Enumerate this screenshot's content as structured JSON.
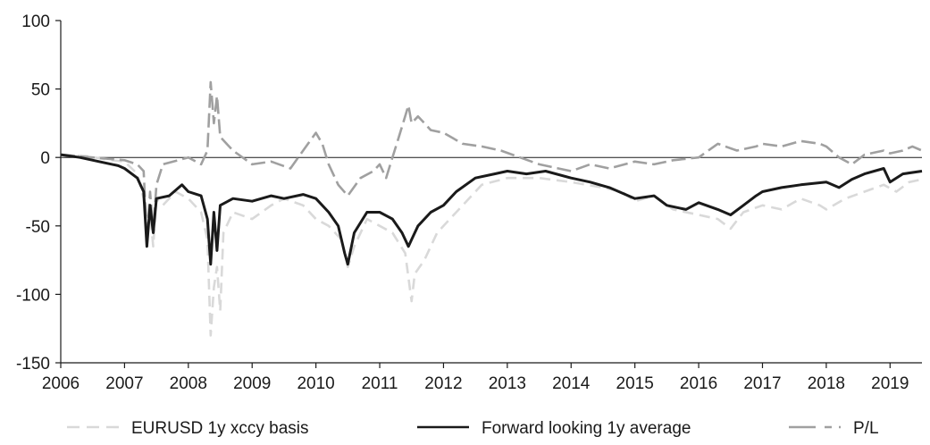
{
  "chart_data": {
    "type": "line",
    "title": "",
    "xlabel": "",
    "ylabel": "",
    "xlim": [
      2006.0,
      2019.5
    ],
    "ylim": [
      -150,
      100
    ],
    "y_ticks": [
      100,
      50,
      0,
      -50,
      -100,
      -150
    ],
    "x_ticks": [
      "2006",
      "2007",
      "2008",
      "2009",
      "2010",
      "2011",
      "2012",
      "2013",
      "2014",
      "2015",
      "2016",
      "2017",
      "2018",
      "2019"
    ],
    "grid": false,
    "legend_position": "bottom",
    "series": [
      {
        "name": "EURUSD 1y xccy basis",
        "color": "#d9d9d9",
        "style": "dashed",
        "points": [
          [
            2006.0,
            2
          ],
          [
            2006.4,
            1
          ],
          [
            2006.8,
            -2
          ],
          [
            2007.0,
            -3
          ],
          [
            2007.2,
            -12
          ],
          [
            2007.3,
            -30
          ],
          [
            2007.35,
            -55
          ],
          [
            2007.4,
            -40
          ],
          [
            2007.45,
            -65
          ],
          [
            2007.5,
            -30
          ],
          [
            2007.6,
            -35
          ],
          [
            2007.8,
            -25
          ],
          [
            2008.0,
            -30
          ],
          [
            2008.2,
            -40
          ],
          [
            2008.3,
            -60
          ],
          [
            2008.35,
            -130
          ],
          [
            2008.4,
            -95
          ],
          [
            2008.45,
            -80
          ],
          [
            2008.5,
            -112
          ],
          [
            2008.55,
            -55
          ],
          [
            2008.7,
            -40
          ],
          [
            2009.0,
            -45
          ],
          [
            2009.3,
            -35
          ],
          [
            2009.5,
            -30
          ],
          [
            2009.8,
            -35
          ],
          [
            2010.0,
            -45
          ],
          [
            2010.2,
            -50
          ],
          [
            2010.4,
            -60
          ],
          [
            2010.5,
            -80
          ],
          [
            2010.6,
            -65
          ],
          [
            2010.8,
            -45
          ],
          [
            2011.0,
            -50
          ],
          [
            2011.2,
            -55
          ],
          [
            2011.4,
            -70
          ],
          [
            2011.5,
            -105
          ],
          [
            2011.55,
            -85
          ],
          [
            2011.7,
            -75
          ],
          [
            2011.9,
            -55
          ],
          [
            2012.1,
            -45
          ],
          [
            2012.3,
            -35
          ],
          [
            2012.6,
            -20
          ],
          [
            2013.0,
            -15
          ],
          [
            2013.5,
            -15
          ],
          [
            2014.0,
            -18
          ],
          [
            2014.5,
            -22
          ],
          [
            2014.8,
            -25
          ],
          [
            2015.0,
            -32
          ],
          [
            2015.3,
            -28
          ],
          [
            2015.6,
            -38
          ],
          [
            2016.0,
            -42
          ],
          [
            2016.3,
            -45
          ],
          [
            2016.5,
            -52
          ],
          [
            2016.7,
            -40
          ],
          [
            2017.0,
            -35
          ],
          [
            2017.3,
            -38
          ],
          [
            2017.6,
            -30
          ],
          [
            2017.9,
            -35
          ],
          [
            2018.0,
            -38
          ],
          [
            2018.3,
            -30
          ],
          [
            2018.6,
            -25
          ],
          [
            2018.9,
            -20
          ],
          [
            2019.1,
            -25
          ],
          [
            2019.3,
            -18
          ],
          [
            2019.5,
            -16
          ]
        ]
      },
      {
        "name": "Forward looking 1y average",
        "color": "#1a1a1a",
        "style": "solid",
        "points": [
          [
            2006.0,
            2
          ],
          [
            2006.3,
            0
          ],
          [
            2006.6,
            -3
          ],
          [
            2006.9,
            -6
          ],
          [
            2007.0,
            -8
          ],
          [
            2007.2,
            -15
          ],
          [
            2007.3,
            -25
          ],
          [
            2007.35,
            -65
          ],
          [
            2007.4,
            -35
          ],
          [
            2007.45,
            -55
          ],
          [
            2007.5,
            -30
          ],
          [
            2007.7,
            -28
          ],
          [
            2007.9,
            -20
          ],
          [
            2008.0,
            -25
          ],
          [
            2008.2,
            -28
          ],
          [
            2008.3,
            -45
          ],
          [
            2008.35,
            -78
          ],
          [
            2008.4,
            -40
          ],
          [
            2008.45,
            -68
          ],
          [
            2008.5,
            -35
          ],
          [
            2008.7,
            -30
          ],
          [
            2009.0,
            -32
          ],
          [
            2009.3,
            -28
          ],
          [
            2009.5,
            -30
          ],
          [
            2009.8,
            -27
          ],
          [
            2010.0,
            -30
          ],
          [
            2010.2,
            -40
          ],
          [
            2010.35,
            -50
          ],
          [
            2010.45,
            -70
          ],
          [
            2010.5,
            -78
          ],
          [
            2010.6,
            -55
          ],
          [
            2010.8,
            -40
          ],
          [
            2011.0,
            -40
          ],
          [
            2011.2,
            -45
          ],
          [
            2011.35,
            -55
          ],
          [
            2011.45,
            -65
          ],
          [
            2011.5,
            -60
          ],
          [
            2011.6,
            -50
          ],
          [
            2011.8,
            -40
          ],
          [
            2012.0,
            -35
          ],
          [
            2012.2,
            -25
          ],
          [
            2012.5,
            -15
          ],
          [
            2012.8,
            -12
          ],
          [
            2013.0,
            -10
          ],
          [
            2013.3,
            -12
          ],
          [
            2013.6,
            -10
          ],
          [
            2014.0,
            -15
          ],
          [
            2014.3,
            -18
          ],
          [
            2014.6,
            -22
          ],
          [
            2015.0,
            -30
          ],
          [
            2015.3,
            -28
          ],
          [
            2015.5,
            -35
          ],
          [
            2015.8,
            -38
          ],
          [
            2016.0,
            -33
          ],
          [
            2016.3,
            -38
          ],
          [
            2016.5,
            -42
          ],
          [
            2016.7,
            -35
          ],
          [
            2016.9,
            -28
          ],
          [
            2017.0,
            -25
          ],
          [
            2017.3,
            -22
          ],
          [
            2017.6,
            -20
          ],
          [
            2018.0,
            -18
          ],
          [
            2018.2,
            -22
          ],
          [
            2018.4,
            -16
          ],
          [
            2018.6,
            -12
          ],
          [
            2018.9,
            -8
          ],
          [
            2019.0,
            -18
          ],
          [
            2019.2,
            -12
          ],
          [
            2019.5,
            -10
          ]
        ]
      },
      {
        "name": "P/L",
        "color": "#a0a0a0",
        "style": "long-short-dash",
        "points": [
          [
            2006.0,
            2
          ],
          [
            2006.5,
            0
          ],
          [
            2007.0,
            -2
          ],
          [
            2007.2,
            -5
          ],
          [
            2007.3,
            -10
          ],
          [
            2007.35,
            -60
          ],
          [
            2007.4,
            -25
          ],
          [
            2007.45,
            -55
          ],
          [
            2007.5,
            -20
          ],
          [
            2007.6,
            -5
          ],
          [
            2008.0,
            0
          ],
          [
            2008.2,
            -5
          ],
          [
            2008.3,
            5
          ],
          [
            2008.35,
            55
          ],
          [
            2008.4,
            25
          ],
          [
            2008.45,
            45
          ],
          [
            2008.5,
            15
          ],
          [
            2008.7,
            5
          ],
          [
            2009.0,
            -5
          ],
          [
            2009.3,
            -3
          ],
          [
            2009.6,
            -8
          ],
          [
            2009.8,
            5
          ],
          [
            2010.0,
            18
          ],
          [
            2010.1,
            10
          ],
          [
            2010.2,
            -5
          ],
          [
            2010.35,
            -20
          ],
          [
            2010.5,
            -28
          ],
          [
            2010.7,
            -15
          ],
          [
            2010.9,
            -10
          ],
          [
            2011.0,
            -5
          ],
          [
            2011.1,
            -15
          ],
          [
            2011.2,
            0
          ],
          [
            2011.3,
            15
          ],
          [
            2011.45,
            38
          ],
          [
            2011.5,
            25
          ],
          [
            2011.6,
            30
          ],
          [
            2011.8,
            20
          ],
          [
            2012.0,
            18
          ],
          [
            2012.3,
            10
          ],
          [
            2012.6,
            8
          ],
          [
            2012.9,
            5
          ],
          [
            2013.2,
            0
          ],
          [
            2013.5,
            -5
          ],
          [
            2013.8,
            -8
          ],
          [
            2014.0,
            -10
          ],
          [
            2014.3,
            -5
          ],
          [
            2014.6,
            -8
          ],
          [
            2015.0,
            -3
          ],
          [
            2015.3,
            -5
          ],
          [
            2015.6,
            -2
          ],
          [
            2016.0,
            0
          ],
          [
            2016.3,
            10
          ],
          [
            2016.6,
            5
          ],
          [
            2016.9,
            8
          ],
          [
            2017.0,
            10
          ],
          [
            2017.3,
            8
          ],
          [
            2017.6,
            12
          ],
          [
            2017.9,
            10
          ],
          [
            2018.0,
            8
          ],
          [
            2018.2,
            0
          ],
          [
            2018.4,
            -5
          ],
          [
            2018.6,
            2
          ],
          [
            2018.9,
            5
          ],
          [
            2019.0,
            3
          ],
          [
            2019.2,
            5
          ],
          [
            2019.35,
            8
          ],
          [
            2019.5,
            5
          ]
        ]
      }
    ]
  }
}
